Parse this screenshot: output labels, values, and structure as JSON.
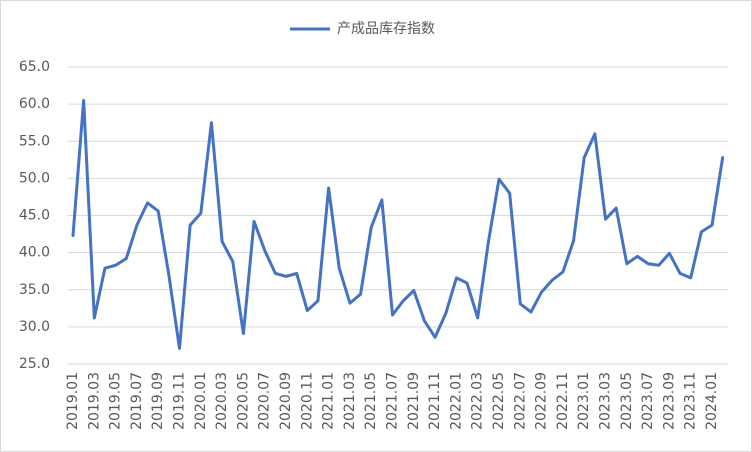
{
  "chart_data": {
    "type": "line",
    "categories": [
      "2019.01",
      null,
      "2019.03",
      null,
      "2019.05",
      null,
      "2019.07",
      null,
      "2019.09",
      null,
      "2019.11",
      null,
      "2020.01",
      null,
      "2020.03",
      null,
      "2020.05",
      null,
      "2020.07",
      null,
      "2020.09",
      null,
      "2020.11",
      null,
      "2021.01",
      null,
      "2021.03",
      null,
      "2021.05",
      null,
      "2021.07",
      null,
      "2021.09",
      null,
      "2021.11",
      null,
      "2022.01",
      null,
      "2022.03",
      null,
      "2022.05",
      null,
      "2022.07",
      null,
      "2022.09",
      null,
      "2022.11",
      null,
      "2023.01",
      null,
      "2023.03",
      null,
      "2023.05",
      null,
      "2023.07",
      null,
      "2023.09",
      null,
      "2023.11",
      null,
      "2024.01",
      null
    ],
    "series": [
      {
        "name": "产成品库存指数",
        "color": "#4472c4",
        "values": [
          42.3,
          60.5,
          31.2,
          37.9,
          38.3,
          39.2,
          43.7,
          46.7,
          45.6,
          37.0,
          27.1,
          43.7,
          45.3,
          57.5,
          41.5,
          38.8,
          29.1,
          44.2,
          40.3,
          37.2,
          36.8,
          37.2,
          32.2,
          33.5,
          48.7,
          37.9,
          33.2,
          34.4,
          43.4,
          47.1,
          31.6,
          33.5,
          34.9,
          30.8,
          28.6,
          31.8,
          36.6,
          35.9,
          31.2,
          41.4,
          49.9,
          48.0,
          33.1,
          32.0,
          34.7,
          36.3,
          37.4,
          41.6,
          52.8,
          56.0,
          44.5,
          46.0,
          38.5,
          39.5,
          38.5,
          38.3,
          39.9,
          37.2,
          36.6,
          42.8,
          43.7,
          52.8
        ]
      }
    ],
    "ylim": [
      25,
      65
    ],
    "yticks": [
      {
        "value": 25,
        "label": "25.0"
      },
      {
        "value": 30,
        "label": "30.0"
      },
      {
        "value": 35,
        "label": "35.0"
      },
      {
        "value": 40,
        "label": "40.0"
      },
      {
        "value": 45,
        "label": "45.0"
      },
      {
        "value": 50,
        "label": "50.0"
      },
      {
        "value": 55,
        "label": "55.0"
      },
      {
        "value": 60,
        "label": "60.0"
      },
      {
        "value": 65,
        "label": "65.0"
      }
    ],
    "grid": true,
    "legend": "top"
  }
}
